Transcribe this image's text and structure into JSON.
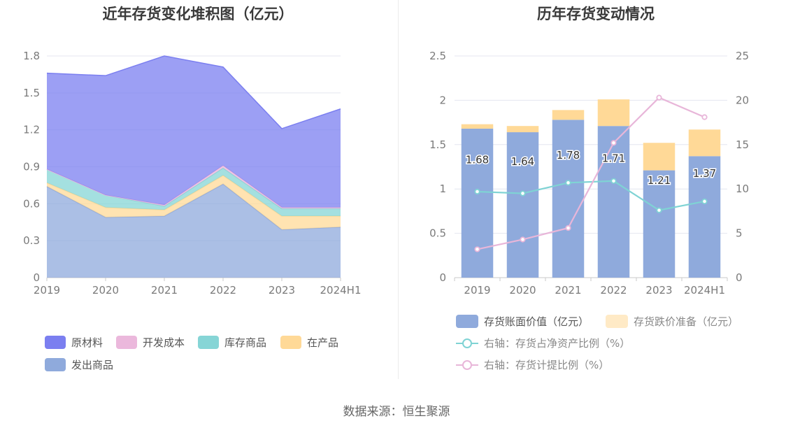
{
  "source": "数据来源：恒生聚源",
  "chart_data": [
    {
      "type": "area",
      "title": "近年存货变化堆积图（亿元）",
      "stacked": true,
      "categories": [
        "2019",
        "2020",
        "2021",
        "2022",
        "2023",
        "2024H1"
      ],
      "ylim": [
        0,
        1.8
      ],
      "yticks": [
        "0",
        "0.3",
        "0.6",
        "0.9",
        "1.2",
        "1.5",
        "1.8"
      ],
      "grid": true,
      "legend_position": "bottom",
      "series": [
        {
          "name": "发出商品",
          "color": "#8FAADC",
          "values": [
            0.74,
            0.49,
            0.5,
            0.76,
            0.39,
            0.41
          ]
        },
        {
          "name": "在产品",
          "color": "#FFD997",
          "values": [
            0.03,
            0.08,
            0.05,
            0.07,
            0.11,
            0.09
          ]
        },
        {
          "name": "库存商品",
          "color": "#86D5D6",
          "values": [
            0.11,
            0.1,
            0.03,
            0.06,
            0.06,
            0.06
          ]
        },
        {
          "name": "开发成本",
          "color": "#EBB8DC",
          "values": [
            0.0,
            0.0,
            0.01,
            0.02,
            0.01,
            0.01
          ]
        },
        {
          "name": "原材料",
          "color": "#7B7FF0",
          "values": [
            0.78,
            0.97,
            1.21,
            0.8,
            0.64,
            0.8
          ]
        }
      ],
      "legend_order": [
        "原材料",
        "开发成本",
        "库存商品",
        "在产品",
        "发出商品"
      ]
    },
    {
      "type": "bar",
      "title": "历年存货变动情况",
      "stacked": true,
      "categories": [
        "2019",
        "2020",
        "2021",
        "2022",
        "2023",
        "2024H1"
      ],
      "ylim": [
        0,
        2.5
      ],
      "yticks": [
        "0",
        "0.5",
        "1",
        "1.5",
        "2",
        "2.5"
      ],
      "y2lim": [
        0,
        25
      ],
      "y2ticks": [
        "0",
        "5",
        "10",
        "15",
        "20",
        "25"
      ],
      "grid": true,
      "legend_position": "bottom",
      "series": [
        {
          "name": "存货账面价值（亿元）",
          "color": "#8FAADC",
          "values": [
            1.68,
            1.64,
            1.78,
            1.71,
            1.21,
            1.37
          ],
          "labels": [
            "1.68",
            "1.64",
            "1.78",
            "1.71",
            "1.21",
            "1.37"
          ]
        },
        {
          "name": "存货跌价准备（亿元）",
          "color": "#FFD997",
          "values": [
            0.05,
            0.07,
            0.11,
            0.3,
            0.31,
            0.3
          ]
        }
      ],
      "lines": [
        {
          "name": "右轴：存货占净资产比例（%）",
          "color": "#7FD3D4",
          "axis": "right",
          "values": [
            9.7,
            9.5,
            10.7,
            10.9,
            7.6,
            8.6
          ]
        },
        {
          "name": "右轴：存货计提比例（%）",
          "color": "#E8B6D9",
          "axis": "right",
          "values": [
            3.2,
            4.3,
            5.6,
            15.2,
            20.3,
            18.1
          ]
        }
      ]
    }
  ]
}
